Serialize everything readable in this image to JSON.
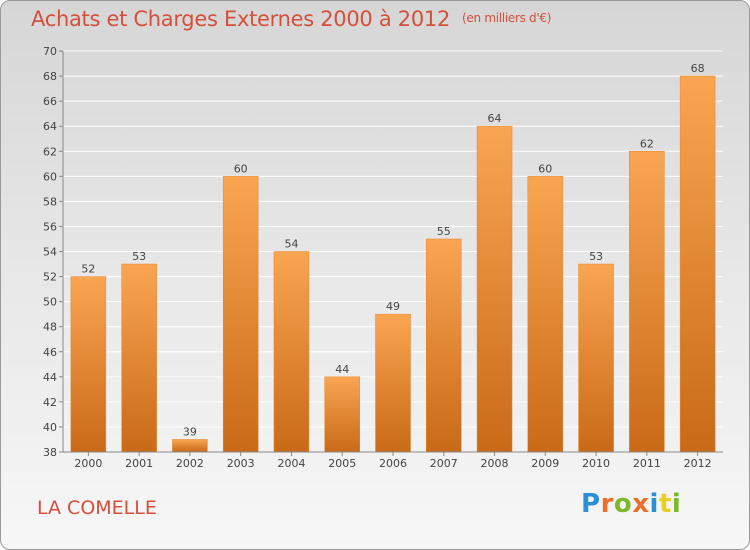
{
  "header": {
    "title": "Achats et Charges Externes 2000 à 2012",
    "unit": "(en milliers d'€)"
  },
  "footer": {
    "commune": "LA COMELLE",
    "logo": {
      "letters": [
        "P",
        "r",
        "o",
        "x",
        "i",
        "t",
        "i"
      ],
      "colors": [
        "#2b8fd6",
        "#e8702a",
        "#7cb928",
        "#e8702a",
        "#2b8fd6",
        "#e8d020",
        "#7cb928"
      ]
    }
  },
  "colors": {
    "bar_top": "#f9a552",
    "bar_bottom": "#c96a17",
    "title": "#d4503b"
  },
  "chart_data": {
    "type": "bar",
    "title": "Achats et Charges Externes 2000 à 2012",
    "subtitle": "(en milliers d'€)",
    "xlabel": "",
    "ylabel": "",
    "categories": [
      "2000",
      "2001",
      "2002",
      "2003",
      "2004",
      "2005",
      "2006",
      "2007",
      "2008",
      "2009",
      "2010",
      "2011",
      "2012"
    ],
    "values": [
      52,
      53,
      39,
      60,
      54,
      44,
      49,
      55,
      64,
      60,
      53,
      62,
      68
    ],
    "ylim": [
      38,
      70
    ],
    "yticks": [
      38,
      40,
      42,
      44,
      46,
      48,
      50,
      52,
      54,
      56,
      58,
      60,
      62,
      64,
      66,
      68,
      70
    ],
    "grid": true
  }
}
